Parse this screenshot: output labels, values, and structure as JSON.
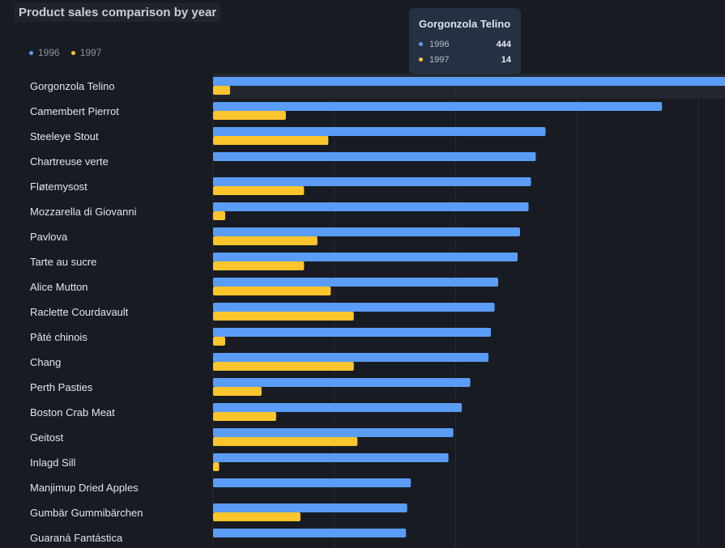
{
  "title": "Product sales comparison by year",
  "legend": [
    {
      "label": "1996",
      "color": "#5b9cf6"
    },
    {
      "label": "1997",
      "color": "#fbc52b"
    }
  ],
  "tooltip": {
    "title": "Gorgonzola Telino",
    "rows": [
      {
        "label": "1996",
        "value": "444",
        "color": "#5b9cf6"
      },
      {
        "label": "1997",
        "value": "14",
        "color": "#fbc52b"
      }
    ]
  },
  "chart_data": {
    "type": "bar",
    "orientation": "horizontal",
    "title": "Product sales comparison by year",
    "xlim": [
      0,
      500
    ],
    "grid": true,
    "legend_position": "top-left",
    "highlighted_category": "Gorgonzola Telino",
    "categories": [
      "Gorgonzola Telino",
      "Camembert Pierrot",
      "Steeleye Stout",
      "Chartreuse verte",
      "Fløtemysost",
      "Mozzarella di Giovanni",
      "Pavlova",
      "Tarte au sucre",
      "Alice Mutton",
      "Raclette Courdavault",
      "Pâté chinois",
      "Chang",
      "Perth Pasties",
      "Boston Crab Meat",
      "Geitost",
      "Inlagd Sill",
      "Manjimup Dried Apples",
      "Gumbär Gummibärchen",
      "Guaraná Fantástica"
    ],
    "series": [
      {
        "name": "1996",
        "color": "#5b9cf6",
        "values": [
          444,
          370,
          274,
          266,
          262,
          260,
          253,
          251,
          235,
          232,
          229,
          227,
          212,
          205,
          198,
          194,
          163,
          160,
          159
        ]
      },
      {
        "name": "1997",
        "color": "#fbc52b",
        "values": [
          14,
          60,
          95,
          0,
          75,
          10,
          86,
          75,
          97,
          116,
          10,
          116,
          40,
          52,
          119,
          5,
          0,
          72,
          0
        ]
      }
    ]
  }
}
